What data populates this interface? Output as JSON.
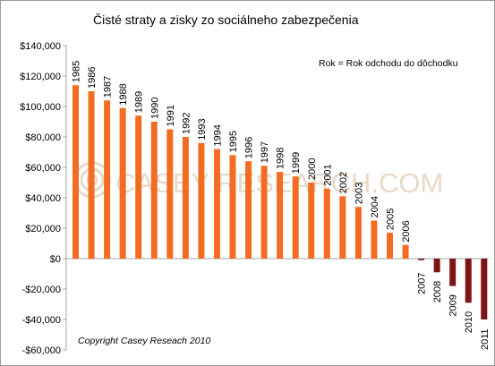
{
  "chart_data": {
    "type": "bar",
    "title": "Čisté straty a zisky zo sociálneho zabezpečenia",
    "legend_note": "Rok = Rok odchodu do dôchodku",
    "copyright": "Copyright Casey Reseach 2010",
    "watermark": "CASEY RESEARCH.COM",
    "categories": [
      "1985",
      "1986",
      "1987",
      "1988",
      "1989",
      "1990",
      "1991",
      "1992",
      "1993",
      "1994",
      "1995",
      "1996",
      "1997",
      "1998",
      "1999",
      "2000",
      "2001",
      "2002",
      "2003",
      "2004",
      "2005",
      "2006",
      "2007",
      "2008",
      "2009",
      "2010",
      "2011"
    ],
    "values": [
      114000,
      110000,
      104000,
      99000,
      94000,
      90000,
      85000,
      80000,
      76000,
      72000,
      68000,
      64000,
      61000,
      57000,
      54000,
      50000,
      46000,
      41000,
      34000,
      25000,
      17000,
      9000,
      -1000,
      -9000,
      -18000,
      -29000,
      -40000
    ],
    "ylim": [
      -60000,
      140000
    ],
    "yticks": [
      -60000,
      -40000,
      -20000,
      0,
      20000,
      40000,
      60000,
      80000,
      100000,
      120000,
      140000
    ],
    "ytick_labels": [
      "-$60,000",
      "-$40,000",
      "-$20,000",
      "$0",
      "$20,000",
      "$40,000",
      "$60,000",
      "$80,000",
      "$100,000",
      "$120,000",
      "$140,000"
    ],
    "grid": false,
    "colors": {
      "positive": "#f26c21",
      "negative": "#7e1416",
      "axis": "#a6a6a6"
    }
  }
}
